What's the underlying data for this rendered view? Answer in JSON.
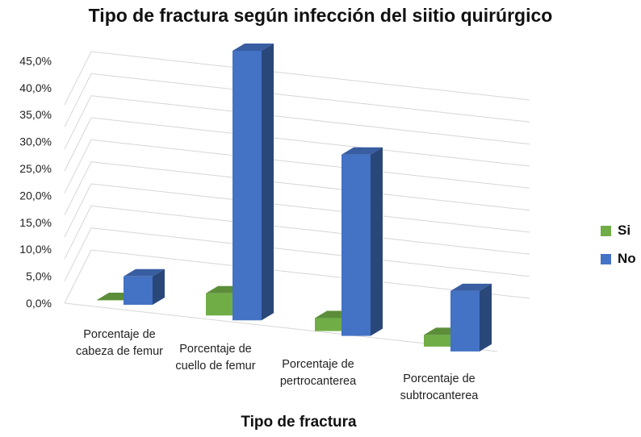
{
  "chart_data": {
    "type": "bar",
    "title": "Tipo de fractura según infección del siitio quirúrgico",
    "xlabel": "Tipo de fractura",
    "ylabel": "",
    "categories": [
      [
        "Porcentaje de",
        "cabeza de femur"
      ],
      [
        "Porcentaje de",
        "cuello de femur"
      ],
      [
        "Porcentaje de",
        "pertrocanterea"
      ],
      [
        "Porcentaje de",
        "subtrocanterea"
      ]
    ],
    "series": [
      {
        "name": "Si",
        "values": [
          0.0,
          3.6,
          2.1,
          1.9
        ],
        "color": "#70AD47"
      },
      {
        "name": "No",
        "values": [
          4.6,
          43.7,
          29.4,
          9.8
        ],
        "color": "#4472C4"
      }
    ],
    "yticks": [
      "0,0%",
      "5,0%",
      "10,0%",
      "15,0%",
      "20,0%",
      "25,0%",
      "30,0%",
      "35,0%",
      "40,0%",
      "45,0%"
    ],
    "ylim": [
      0,
      45
    ],
    "grid": true,
    "legend_position": "right"
  }
}
